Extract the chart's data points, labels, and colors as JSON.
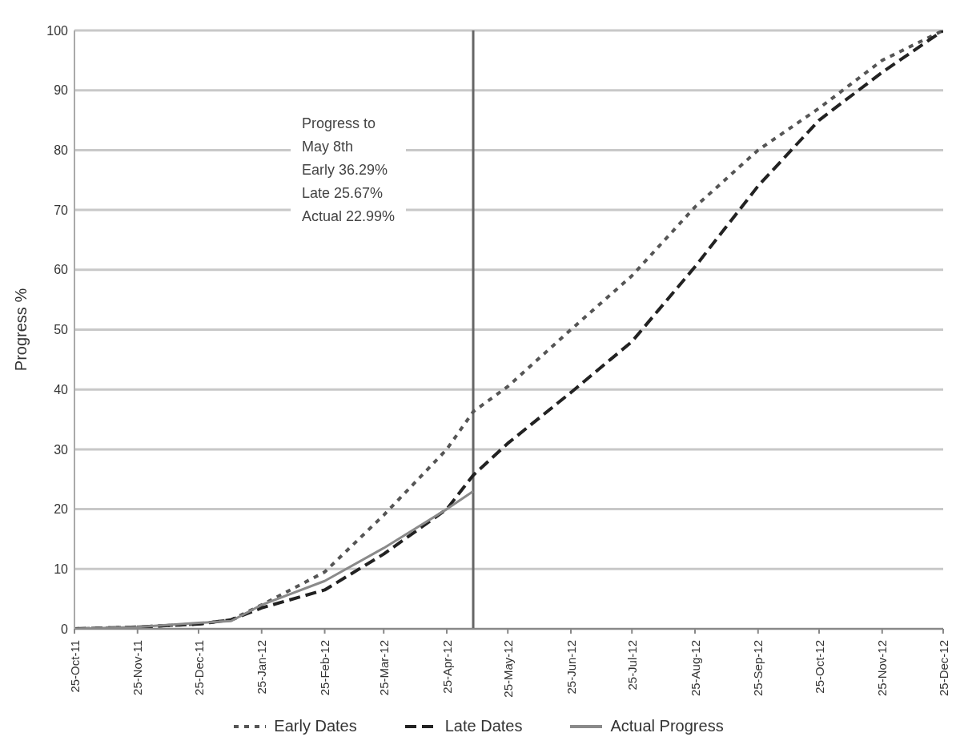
{
  "chart_data": {
    "type": "line",
    "ylabel": "Progress %",
    "annotations": [
      "Progress to\nMay 8th\nEarly 36.29%\nLate 25.67%\nActual 22.99%"
    ],
    "ylim": [
      0,
      100
    ],
    "yticks": [
      0,
      10,
      20,
      30,
      40,
      50,
      60,
      70,
      80,
      90,
      100
    ],
    "xlim": [
      "2011-10-25",
      "2012-12-25"
    ],
    "xticks": [
      {
        "value": "2011-10-25",
        "label": "25-Oct-11"
      },
      {
        "value": "2011-11-25",
        "label": "25-Nov-11"
      },
      {
        "value": "2011-12-25",
        "label": "25-Dec-11"
      },
      {
        "value": "2012-01-25",
        "label": "25-Jan-12"
      },
      {
        "value": "2012-02-25",
        "label": "25-Feb-12"
      },
      {
        "value": "2012-03-25",
        "label": "25-Mar-12"
      },
      {
        "value": "2012-04-25",
        "label": "25-Apr-12"
      },
      {
        "value": "2012-05-25",
        "label": "25-May-12"
      },
      {
        "value": "2012-06-25",
        "label": "25-Jun-12"
      },
      {
        "value": "2012-07-25",
        "label": "25-Jul-12"
      },
      {
        "value": "2012-08-25",
        "label": "25-Aug-12"
      },
      {
        "value": "2012-09-25",
        "label": "25-Sep-12"
      },
      {
        "value": "2012-10-25",
        "label": "25-Oct-12"
      },
      {
        "value": "2012-11-25",
        "label": "25-Nov-12"
      },
      {
        "value": "2012-12-25",
        "label": "25-Dec-12"
      }
    ],
    "grid": "y",
    "legend": "bottom",
    "marker": "none",
    "ref_lines": [
      {
        "axis": "x",
        "value": "2012-05-08",
        "color": "#666666"
      }
    ],
    "series": [
      {
        "name": "Early Dates",
        "color": "#555555",
        "line_style": "dotted",
        "x": [
          "2011-10-25",
          "2011-11-25",
          "2011-12-25",
          "2012-01-10",
          "2012-01-25",
          "2012-02-25",
          "2012-03-25",
          "2012-04-25",
          "2012-05-08",
          "2012-05-25",
          "2012-06-25",
          "2012-07-25",
          "2012-08-25",
          "2012-09-25",
          "2012-10-25",
          "2012-11-25",
          "2012-12-25"
        ],
        "values": [
          0,
          0.3,
          0.8,
          1.5,
          4,
          9.5,
          19,
          30,
          36.29,
          40.5,
          50,
          59,
          70.5,
          80,
          87,
          95,
          100
        ]
      },
      {
        "name": "Late Dates",
        "color": "#222222",
        "line_style": "dashed",
        "x": [
          "2011-10-25",
          "2011-11-25",
          "2011-12-25",
          "2012-01-10",
          "2012-01-25",
          "2012-02-25",
          "2012-03-25",
          "2012-04-25",
          "2012-05-08",
          "2012-05-25",
          "2012-06-25",
          "2012-07-25",
          "2012-08-25",
          "2012-09-25",
          "2012-10-25",
          "2012-11-25",
          "2012-12-25"
        ],
        "values": [
          0,
          0.3,
          0.8,
          1.5,
          3.5,
          6.5,
          12.5,
          20,
          25.67,
          31,
          39.5,
          48,
          60.5,
          74,
          85,
          93,
          100
        ]
      },
      {
        "name": "Actual Progress",
        "color": "#8a8a8a",
        "line_style": "solid",
        "x": [
          "2011-10-25",
          "2011-11-25",
          "2011-12-25",
          "2012-01-10",
          "2012-01-25",
          "2012-02-25",
          "2012-03-25",
          "2012-04-25",
          "2012-05-08"
        ],
        "values": [
          0,
          0.3,
          1,
          1.3,
          4,
          8,
          13.5,
          20,
          22.99
        ]
      }
    ]
  }
}
